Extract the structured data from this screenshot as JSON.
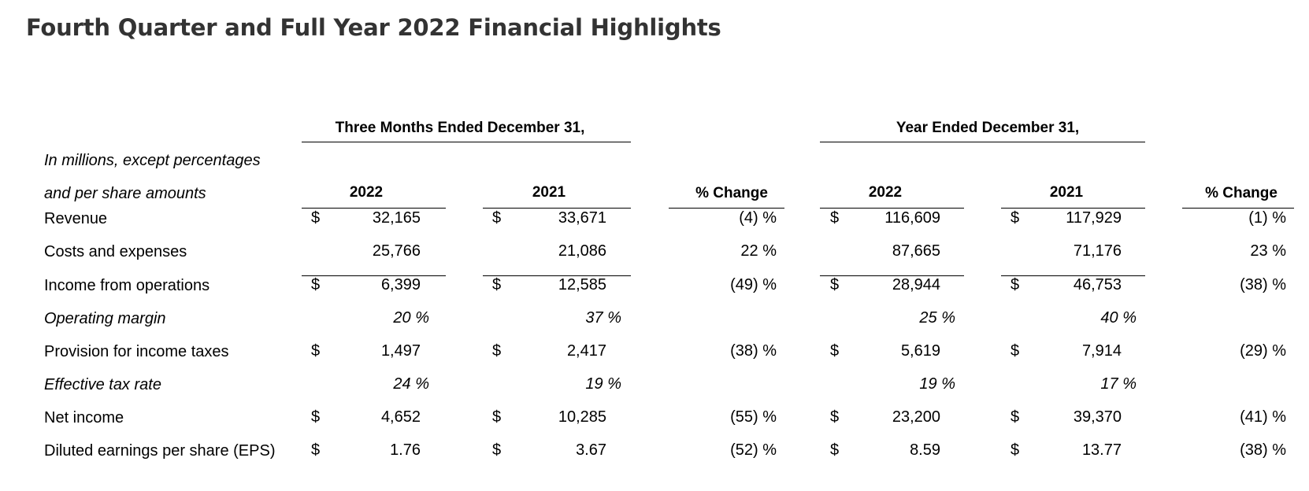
{
  "title": "Fourth Quarter and Full Year 2022 Financial Highlights",
  "table": {
    "group_headers": {
      "three_months": "Three Months Ended December 31,",
      "year": "Year Ended December 31,"
    },
    "units_note": [
      "In millions, except percentages",
      "and per share amounts"
    ],
    "columns": [
      "2022",
      "2021",
      "% Change",
      "2022",
      "2021",
      "% Change"
    ],
    "currency_symbol": "$",
    "rows": [
      {
        "label": "Revenue",
        "italic": false,
        "dollar": true,
        "q22": "32,165",
        "q21": "33,671",
        "qchg": "(4) %",
        "y22": "116,609",
        "y21": "117,929",
        "ychg": "(1) %"
      },
      {
        "label": "Costs and expenses",
        "italic": false,
        "dollar": false,
        "q22": "25,766",
        "q21": "21,086",
        "qchg": "22 %",
        "y22": "87,665",
        "y21": "71,176",
        "ychg": "23 %"
      },
      {
        "label": "Income from operations",
        "italic": false,
        "dollar": true,
        "q22": "6,399",
        "q21": "12,585",
        "qchg": "(49) %",
        "y22": "28,944",
        "y21": "46,753",
        "ychg": "(38) %"
      },
      {
        "label": "Operating margin",
        "italic": true,
        "dollar": false,
        "q22": "20 %",
        "q21": "37 %",
        "qchg": "",
        "y22": "25 %",
        "y21": "40 %",
        "ychg": ""
      },
      {
        "label": "Provision for income taxes",
        "italic": false,
        "dollar": true,
        "q22": "1,497",
        "q21": "2,417",
        "qchg": "(38) %",
        "y22": "5,619",
        "y21": "7,914",
        "ychg": "(29) %"
      },
      {
        "label": "Effective tax rate",
        "italic": true,
        "dollar": false,
        "q22": "24 %",
        "q21": "19 %",
        "qchg": "",
        "y22": "19 %",
        "y21": "17 %",
        "ychg": ""
      },
      {
        "label": "Net income",
        "italic": false,
        "dollar": true,
        "q22": "4,652",
        "q21": "10,285",
        "qchg": "(55) %",
        "y22": "23,200",
        "y21": "39,370",
        "ychg": "(41) %"
      },
      {
        "label": "Diluted earnings per share (EPS)",
        "italic": false,
        "dollar": true,
        "q22": "1.76",
        "q21": "3.67",
        "qchg": "(52) %",
        "y22": "8.59",
        "y21": "13.77",
        "ychg": "(38) %"
      }
    ]
  }
}
